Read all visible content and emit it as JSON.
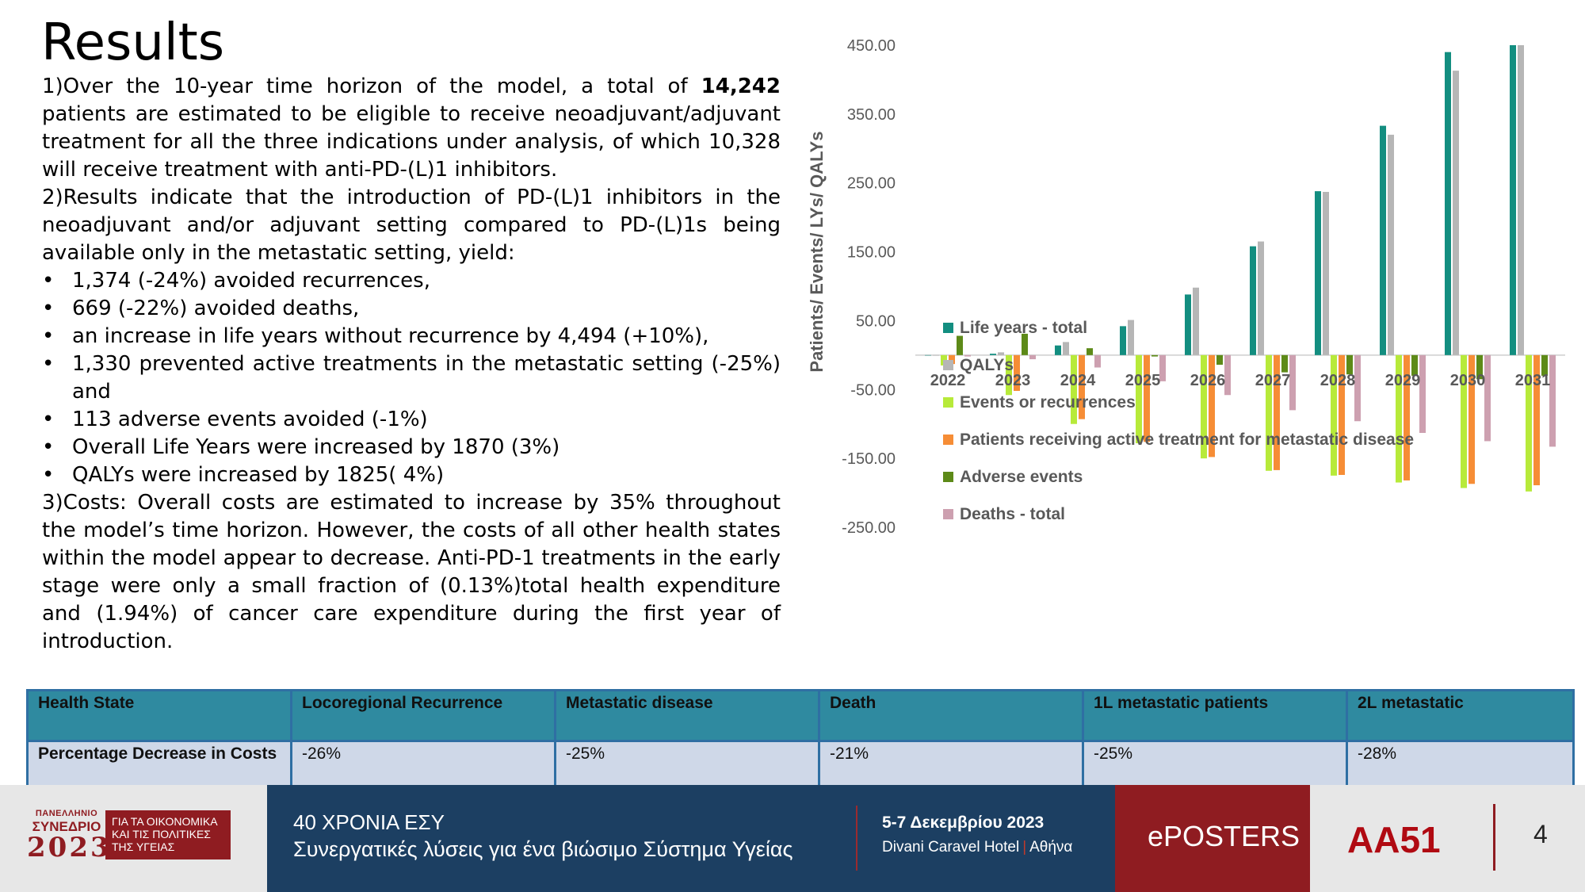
{
  "title": "Results",
  "body": {
    "p1": "1)Over the 10-year time horizon of the model, a total of ",
    "p1_bold": "14,242",
    "p1_rest": " patients are estimated to be eligible to receive neoadjuvant/adjuvant treatment for all the three indications under analysis, of which 10,328 will receive treatment with anti-PD-(L)1 inhibitors.",
    "p2": "2)Results indicate that the introduction of PD-(L)1 inhibitors in the neoadjuvant and/or adjuvant setting compared to PD-(L)1s being available only in the metastatic setting, yield:",
    "bullets": [
      "1,374 (-24%) avoided recurrences,",
      "669 (-22%) avoided deaths,",
      "an increase in life years without recurrence by 4,494 (+10%),",
      "1,330 prevented active treatments in the metastatic setting (-25%) and",
      "113 adverse events avoided (-1%)",
      "Overall Life Years were increased by 1870 (3%)",
      "QALYs were increased by 1825( 4%)"
    ],
    "p3": "3)Costs: Overall costs are estimated to increase by 35% throughout the model’s time horizon. However, the costs of all other health states within the model appear to decrease. Anti-PD-1 treatments in the early stage were only a small fraction of (0.13%)total health expenditure and (1.94%) of cancer care expenditure during the first year of introduction."
  },
  "chart_data": {
    "type": "bar",
    "ylabel": "Patients/ Events/ LYs/ QALYs",
    "ylim": [
      -250,
      450
    ],
    "yticks": [
      450,
      350,
      250,
      150,
      50,
      -50,
      -150,
      -250
    ],
    "ytick_labels": [
      "450.00",
      "350.00",
      "250.00",
      "150.00",
      "50.00",
      "-50.00",
      "-150.00",
      "-250.00"
    ],
    "categories": [
      "2022",
      "2023",
      "2024",
      "2025",
      "2026",
      "2027",
      "2028",
      "2029",
      "2030",
      "2031"
    ],
    "legend_position": "bottom-right",
    "series": [
      {
        "name": "Life years - total",
        "color": "#138e80",
        "values": [
          0,
          2,
          14,
          42,
          88,
          158,
          238,
          333,
          440,
          450
        ]
      },
      {
        "name": "QALYs",
        "color": "#b6b6b6",
        "values": [
          0,
          4,
          19,
          51,
          98,
          165,
          237,
          320,
          413,
          450
        ]
      },
      {
        "name": "Events or recurrences",
        "color": "#b7ea3a",
        "values": [
          -15,
          -58,
          -100,
          -128,
          -150,
          -168,
          -175,
          -185,
          -193,
          -198
        ]
      },
      {
        "name": "Patients receiving active treatment for metastatic disease",
        "color": "#f68d36",
        "values": [
          -13,
          -52,
          -93,
          -126,
          -148,
          -167,
          -174,
          -182,
          -187,
          -189
        ]
      },
      {
        "name": "Adverse events",
        "color": "#5d8a18",
        "values": [
          28,
          31,
          10,
          -2,
          -14,
          -25,
          -28,
          -30,
          -35,
          -30
        ]
      },
      {
        "name": "Deaths - total",
        "color": "#cda0b0",
        "values": [
          -2,
          -6,
          -18,
          -38,
          -58,
          -80,
          -96,
          -113,
          -125,
          -133
        ]
      }
    ]
  },
  "table": {
    "headers": [
      "Health State",
      "Locoregional Recurrence",
      "Metastatic disease",
      "Death",
      "1L metastatic patients",
      "2L metastatic"
    ],
    "row": [
      "Percentage Decrease in Costs",
      "-26%",
      "-25%",
      "-21%",
      "-25%",
      "-28%"
    ]
  },
  "footer": {
    "logo_top": "ΠΑΝΕΛΛΗΝΙΟ",
    "logo_mid": "ΣΥΝΕΔΡΙΟ",
    "logo_year": "2023",
    "logo_box": "ΓΙΑ ΤΑ ΟΙΚΟΝΟΜΙΚΑ ΚΑΙ ΤΙΣ ΠΟΛΙΤΙΚΕΣ ΤΗΣ ΥΓΕΙΑΣ",
    "line1": "40 ΧΡΟΝΙΑ ΕΣΥ",
    "line2": "Συνεργατικές λύσεις για ένα βιώσιμο Σύστημα Υγείας",
    "date": "5-7 Δεκεμβρίου 2023",
    "venue": "Divani Caravel Hotel",
    "city": "Αθήνα",
    "eposters": "ePOSTERS",
    "code": "AA51",
    "page": "4"
  }
}
